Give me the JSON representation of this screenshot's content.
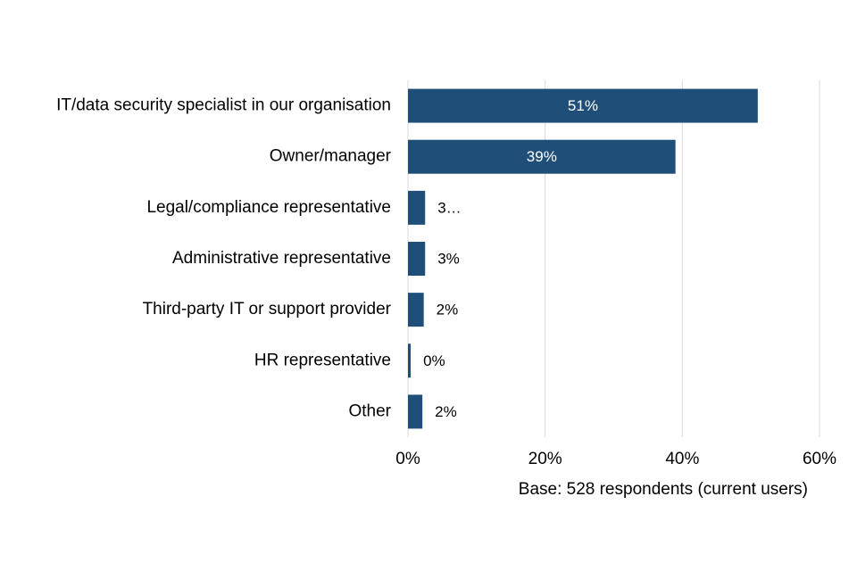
{
  "chart_data": {
    "type": "bar",
    "orientation": "horizontal",
    "categories": [
      "IT/data security specialist in our organisation",
      "Owner/manager",
      "Legal/compliance representative",
      "Administrative representative",
      "Third-party IT or support provider",
      "HR representative",
      "Other"
    ],
    "values": [
      51,
      39,
      2.5,
      2.5,
      2.3,
      0.4,
      2.1
    ],
    "value_labels": [
      "51%",
      "39%",
      "3…",
      "3%",
      "2%",
      "0%",
      "2%"
    ],
    "color": "#1f4e79",
    "xlim": [
      0,
      60
    ],
    "xticks": [
      {
        "value": 0,
        "label": "0%"
      },
      {
        "value": 20,
        "label": "20%"
      },
      {
        "value": 40,
        "label": "40%"
      },
      {
        "value": 60,
        "label": "60%"
      }
    ],
    "grid": true,
    "note": "Base: 528 respondents (current users)"
  }
}
